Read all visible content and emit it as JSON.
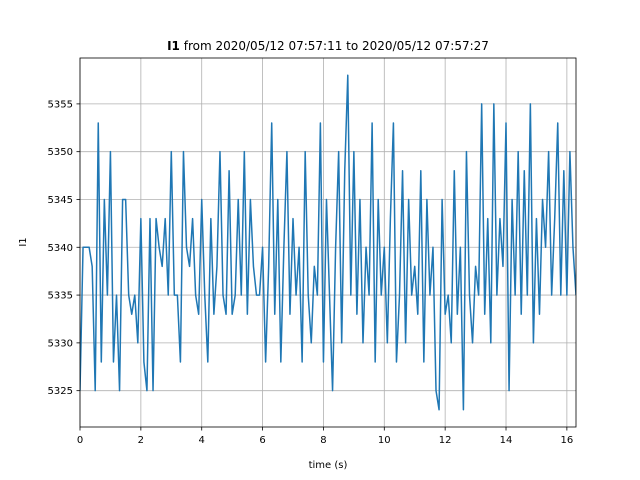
{
  "chart_data": {
    "type": "line",
    "title": {
      "bold": "I1",
      "rest": " from 2020/05/12 07:57:11 to 2020/05/12 07:57:27"
    },
    "xlabel": "time (s)",
    "ylabel": "I1",
    "xlim": [
      0,
      16.3
    ],
    "ylim": [
      5321.2,
      5359.8
    ],
    "xticks": [
      0,
      2,
      4,
      6,
      8,
      10,
      12,
      14,
      16
    ],
    "yticks": [
      5325,
      5330,
      5335,
      5340,
      5345,
      5350,
      5355
    ],
    "grid": true,
    "x": [
      0,
      0.1,
      0.2,
      0.3,
      0.4,
      0.5,
      0.6,
      0.7,
      0.8,
      0.9,
      1,
      1.1,
      1.2,
      1.3,
      1.4,
      1.5,
      1.6,
      1.7,
      1.8,
      1.9,
      2,
      2.1,
      2.2,
      2.3,
      2.4,
      2.5,
      2.6,
      2.7,
      2.8,
      2.9,
      3,
      3.1,
      3.2,
      3.3,
      3.4,
      3.5,
      3.6,
      3.7,
      3.8,
      3.9,
      4,
      4.1,
      4.2,
      4.3,
      4.4,
      4.5,
      4.6,
      4.7,
      4.8,
      4.9,
      5,
      5.1,
      5.2,
      5.3,
      5.4,
      5.5,
      5.6,
      5.7,
      5.8,
      5.9,
      6,
      6.1,
      6.2,
      6.3,
      6.4,
      6.5,
      6.6,
      6.7,
      6.8,
      6.9,
      7,
      7.1,
      7.2,
      7.3,
      7.4,
      7.5,
      7.6,
      7.7,
      7.8,
      7.9,
      8,
      8.1,
      8.2,
      8.3,
      8.4,
      8.5,
      8.6,
      8.7,
      8.8,
      8.9,
      9,
      9.1,
      9.2,
      9.3,
      9.4,
      9.5,
      9.6,
      9.7,
      9.8,
      9.9,
      10,
      10.1,
      10.2,
      10.3,
      10.4,
      10.5,
      10.6,
      10.7,
      10.8,
      10.9,
      11,
      11.1,
      11.2,
      11.3,
      11.4,
      11.5,
      11.6,
      11.7,
      11.8,
      11.9,
      12,
      12.1,
      12.2,
      12.3,
      12.4,
      12.5,
      12.6,
      12.7,
      12.8,
      12.9,
      13,
      13.1,
      13.2,
      13.3,
      13.4,
      13.5,
      13.6,
      13.7,
      13.8,
      13.9,
      14,
      14.1,
      14.2,
      14.3,
      14.4,
      14.5,
      14.6,
      14.7,
      14.8,
      14.9,
      15,
      15.1,
      15.2,
      15.3,
      15.4,
      15.5,
      15.6,
      15.7,
      15.8,
      15.9,
      16,
      16.1,
      16.2,
      16.3
    ],
    "series": [
      {
        "name": "I1",
        "color": "#1f77b4",
        "values": [
          5325,
          5340,
          5340,
          5340,
          5338,
          5325,
          5353,
          5328,
          5345,
          5335,
          5350,
          5328,
          5335,
          5325,
          5345,
          5345,
          5335,
          5333,
          5335,
          5330,
          5343,
          5328,
          5325,
          5343,
          5325,
          5343,
          5340,
          5338,
          5343,
          5335,
          5350,
          5335,
          5335,
          5328,
          5350,
          5340,
          5338,
          5343,
          5335,
          5333,
          5345,
          5335,
          5328,
          5343,
          5333,
          5338,
          5350,
          5335,
          5333,
          5348,
          5333,
          5335,
          5345,
          5335,
          5350,
          5333,
          5345,
          5338,
          5335,
          5335,
          5340,
          5328,
          5338,
          5353,
          5333,
          5345,
          5328,
          5340,
          5350,
          5333,
          5343,
          5335,
          5340,
          5328,
          5350,
          5335,
          5330,
          5338,
          5335,
          5353,
          5328,
          5345,
          5335,
          5325,
          5340,
          5350,
          5330,
          5348,
          5358,
          5335,
          5350,
          5333,
          5345,
          5330,
          5340,
          5335,
          5353,
          5328,
          5345,
          5335,
          5340,
          5330,
          5343,
          5353,
          5328,
          5335,
          5348,
          5330,
          5345,
          5335,
          5338,
          5333,
          5348,
          5328,
          5345,
          5335,
          5340,
          5325,
          5323,
          5345,
          5333,
          5335,
          5330,
          5348,
          5333,
          5340,
          5323,
          5350,
          5335,
          5330,
          5338,
          5335,
          5355,
          5333,
          5343,
          5330,
          5355,
          5335,
          5343,
          5338,
          5353,
          5325,
          5345,
          5335,
          5350,
          5333,
          5348,
          5335,
          5355,
          5330,
          5343,
          5333,
          5345,
          5340,
          5350,
          5335,
          5343,
          5353,
          5335,
          5348,
          5335,
          5350,
          5340,
          5335
        ]
      }
    ]
  }
}
